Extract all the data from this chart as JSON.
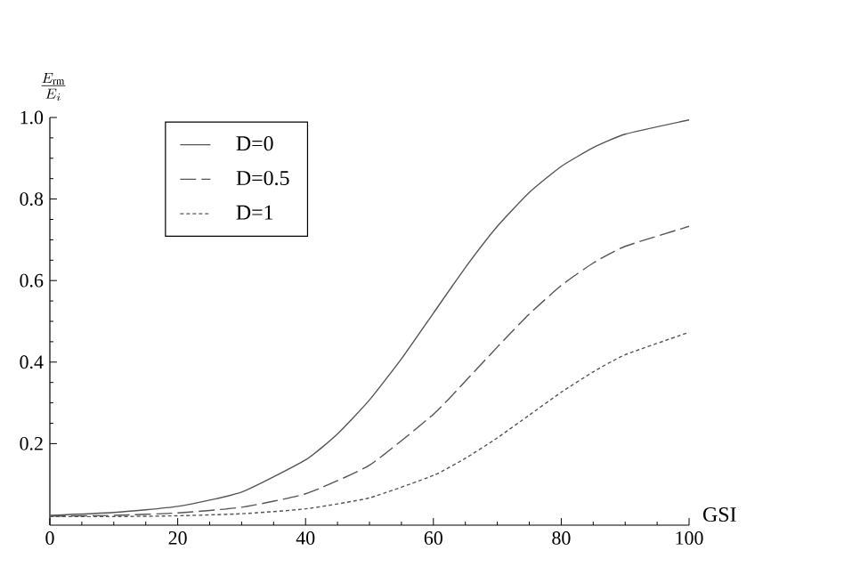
{
  "chart_data": {
    "type": "line",
    "xlabel": "GSI",
    "ylabel": "\\frac{E_{\\mathrm{rm}}}{E_{i}}",
    "xlim": [
      0,
      100
    ],
    "ylim": [
      0,
      1.0
    ],
    "xticks": [
      0,
      20,
      40,
      60,
      80,
      100
    ],
    "yticks": [
      0.2,
      0.4,
      0.6,
      0.8,
      {
        "value": 1.0,
        "label": "1.0"
      }
    ],
    "legend": "top left",
    "grid": false,
    "series": [
      {
        "name": "D=0",
        "color": "#555555",
        "line_style": "solid",
        "x": [
          0,
          10,
          20,
          30,
          40,
          45,
          50,
          55,
          60,
          65,
          70,
          75,
          80,
          85,
          90,
          100
        ],
        "values": [
          0.024,
          0.031,
          0.046,
          0.081,
          0.16,
          0.224,
          0.307,
          0.408,
          0.52,
          0.632,
          0.733,
          0.816,
          0.88,
          0.926,
          0.959,
          0.994
        ]
      },
      {
        "name": "D=0.5",
        "color": "#555555",
        "line_style": "dashed",
        "x": [
          0,
          10,
          20,
          30,
          40,
          50,
          60,
          65,
          70,
          75,
          80,
          85,
          90,
          100
        ],
        "values": [
          0.022,
          0.024,
          0.03,
          0.044,
          0.077,
          0.147,
          0.272,
          0.353,
          0.437,
          0.518,
          0.588,
          0.643,
          0.684,
          0.733
        ]
      },
      {
        "name": "D=1",
        "color": "#555555",
        "line_style": "dotted",
        "x": [
          0,
          10,
          20,
          30,
          40,
          50,
          60,
          65,
          70,
          75,
          80,
          85,
          90,
          100
        ],
        "values": [
          0.021,
          0.021,
          0.023,
          0.028,
          0.04,
          0.067,
          0.122,
          0.164,
          0.214,
          0.27,
          0.326,
          0.376,
          0.418,
          0.473
        ]
      }
    ]
  }
}
